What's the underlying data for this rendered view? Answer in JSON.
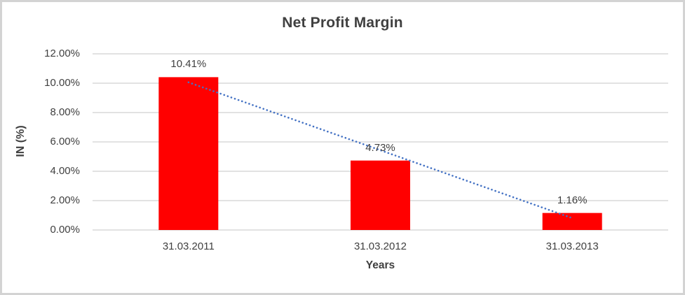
{
  "chart_data": {
    "type": "bar",
    "title": "Net Profit Margin",
    "xlabel": "Years",
    "ylabel": "IN (%)",
    "categories": [
      "31.03.2011",
      "31.03.2012",
      "31.03.2013"
    ],
    "values": [
      10.41,
      4.73,
      1.16
    ],
    "data_labels": [
      "10.41%",
      "4.73%",
      "1.16%"
    ],
    "y_ticks": [
      "12.00%",
      "10.00%",
      "8.00%",
      "6.00%",
      "4.00%",
      "2.00%",
      "0.00%"
    ],
    "ylim": [
      0,
      12
    ],
    "grid": true,
    "legend": "none",
    "trendline": {
      "type": "linear",
      "style": "dotted"
    },
    "colors": {
      "bar": "#FF0000",
      "trendline": "#4472C4",
      "gridline": "#D9D9D9",
      "text": "#404040",
      "border": "#D3D3D3",
      "background": "#FFFFFF"
    }
  }
}
